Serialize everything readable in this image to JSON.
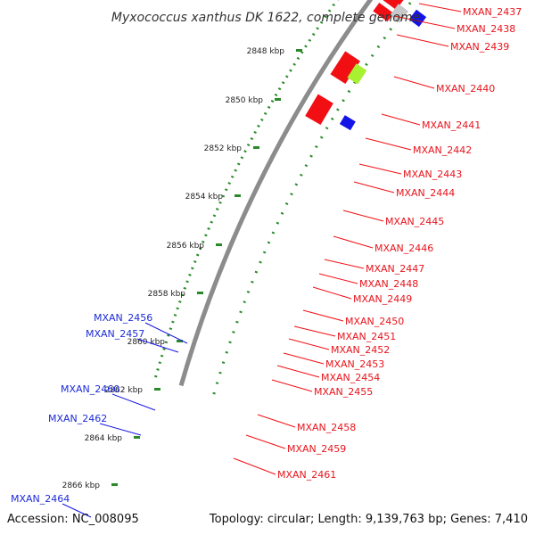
{
  "title": "Myxococcus xanthus DK 1622, complete genome",
  "accession": "Accession: NC_008095",
  "summary": "Topology: circular; Length: 9,139,763 bp; Genes: 7,410",
  "colors": {
    "red": "#f20f14",
    "blue": "#1414e6",
    "light_green": "#a8f032",
    "dark_green": "#2a9a2a",
    "gray": "#c8c8c8",
    "orange": "#ff8a00",
    "backbone": "#8c8c8c",
    "tick_green": "#2a8a2a"
  },
  "kbp_ticks": [
    "2848 kbp",
    "2850 kbp",
    "2852 kbp",
    "2854 kbp",
    "2856 kbp",
    "2858 kbp",
    "2860 kbp",
    "2862 kbp",
    "2864 kbp",
    "2866 kbp"
  ],
  "right_labels": [
    "MXAN_2437",
    "MXAN_2438",
    "MXAN_2439",
    "MXAN_2440",
    "MXAN_2441",
    "MXAN_2442",
    "MXAN_2443",
    "MXAN_2444",
    "MXAN_2445",
    "MXAN_2446",
    "MXAN_2447",
    "MXAN_2448",
    "MXAN_2449",
    "MXAN_2450",
    "MXAN_2451",
    "MXAN_2452",
    "MXAN_2453",
    "MXAN_2454",
    "MXAN_2455",
    "MXAN_2458",
    "MXAN_2459",
    "MXAN_2461"
  ],
  "left_labels": [
    "MXAN_2456",
    "MXAN_2457",
    "MXAN_2460",
    "MXAN_2462",
    "MXAN_2464"
  ]
}
